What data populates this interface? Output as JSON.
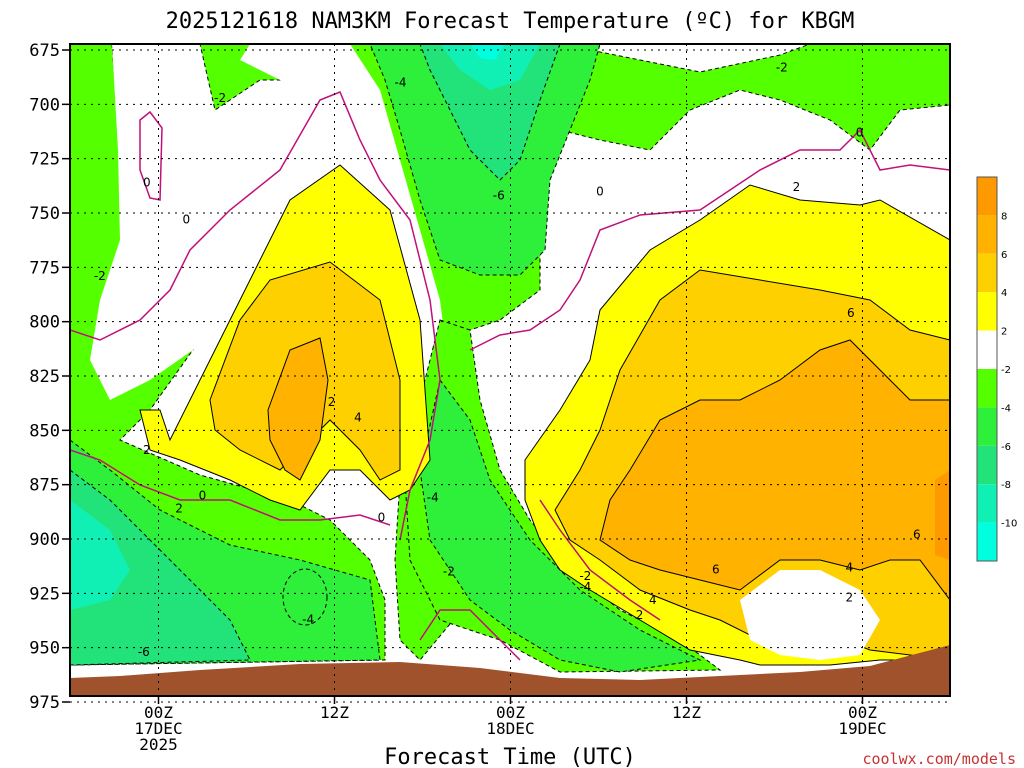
{
  "chart_data": {
    "type": "heatmap",
    "title": "2025121618 NAM3KM Forecast Temperature (ºC) for KBGM",
    "xlabel": "Forecast Time (UTC)",
    "ylabel": "",
    "y_axis": {
      "unit": "hPa",
      "ticks": [
        675,
        700,
        725,
        750,
        775,
        800,
        825,
        850,
        875,
        900,
        925,
        950,
        975
      ],
      "ylim": [
        975,
        675
      ]
    },
    "x_axis": {
      "unit": "forecast hour from 2025121618",
      "xlim": [
        0,
        60
      ],
      "ticks": [
        {
          "hour": 6,
          "lines": [
            "00Z",
            "17DEC",
            "2025"
          ]
        },
        {
          "hour": 18,
          "lines": [
            "12Z"
          ]
        },
        {
          "hour": 30,
          "lines": [
            "00Z",
            "18DEC"
          ]
        },
        {
          "hour": 42,
          "lines": [
            "12Z"
          ]
        },
        {
          "hour": 54,
          "lines": [
            "00Z",
            "19DEC"
          ]
        }
      ]
    },
    "colorbar": {
      "labels": [
        "8",
        "6",
        "4",
        "2",
        "-2",
        "-4",
        "-6",
        "-8",
        "-10"
      ],
      "bins": [
        {
          "color": "#ff9900"
        },
        {
          "color": "#ffb300"
        },
        {
          "color": "#ffd000"
        },
        {
          "color": "#ffff00"
        },
        {
          "color": "#ffffff"
        },
        {
          "color": "#54ff00"
        },
        {
          "color": "#2ef03a"
        },
        {
          "color": "#22e27a"
        },
        {
          "color": "#11f0b4"
        },
        {
          "color": "#00ffde"
        }
      ]
    },
    "contour_labels": [
      {
        "text": "-2",
        "hour": 10.2,
        "p": 697
      },
      {
        "text": "-4",
        "hour": 22.5,
        "p": 690
      },
      {
        "text": "-2",
        "hour": 48.5,
        "p": 683
      },
      {
        "text": "0",
        "hour": 5.2,
        "p": 736
      },
      {
        "text": "0",
        "hour": 7.9,
        "p": 753
      },
      {
        "text": "-2",
        "hour": 2.0,
        "p": 779
      },
      {
        "text": "-6",
        "hour": 29.2,
        "p": 742
      },
      {
        "text": "0",
        "hour": 36.1,
        "p": 740
      },
      {
        "text": "2",
        "hour": 49.5,
        "p": 738
      },
      {
        "text": "0",
        "hour": 53.8,
        "p": 713
      },
      {
        "text": "6",
        "hour": 53.2,
        "p": 796
      },
      {
        "text": "2",
        "hour": 5.2,
        "p": 859
      },
      {
        "text": "0",
        "hour": 9.0,
        "p": 880
      },
      {
        "text": "2",
        "hour": 7.4,
        "p": 886
      },
      {
        "text": "2",
        "hour": 17.8,
        "p": 837
      },
      {
        "text": "4",
        "hour": 19.6,
        "p": 844
      },
      {
        "text": "0",
        "hour": 21.2,
        "p": 890
      },
      {
        "text": "-4",
        "hour": 24.7,
        "p": 881
      },
      {
        "text": "-2",
        "hour": 25.8,
        "p": 915
      },
      {
        "text": "-2",
        "hour": 35.1,
        "p": 917
      },
      {
        "text": "-4",
        "hour": 35.1,
        "p": 922
      },
      {
        "text": "4",
        "hour": 39.7,
        "p": 928
      },
      {
        "text": "2",
        "hour": 38.8,
        "p": 935
      },
      {
        "text": "6",
        "hour": 44.0,
        "p": 914
      },
      {
        "text": "4",
        "hour": 53.1,
        "p": 913
      },
      {
        "text": "2",
        "hour": 53.1,
        "p": 927
      },
      {
        "text": "6",
        "hour": 57.7,
        "p": 898
      },
      {
        "text": "-4",
        "hour": 16.2,
        "p": 937
      },
      {
        "text": "-6",
        "hour": 5.0,
        "p": 952
      }
    ],
    "zones": [
      {
        "name": "cold-left",
        "range": "-6 to -10"
      },
      {
        "name": "mid-level-cold-tongue",
        "range": "-4 to -6"
      },
      {
        "name": "warm-nose-17dec",
        "max": 8
      },
      {
        "name": "warm-sector-18-19dec",
        "max": 8
      },
      {
        "name": "terrain",
        "color": "#a0522d"
      }
    ]
  },
  "credit": "coolwx.com/models"
}
